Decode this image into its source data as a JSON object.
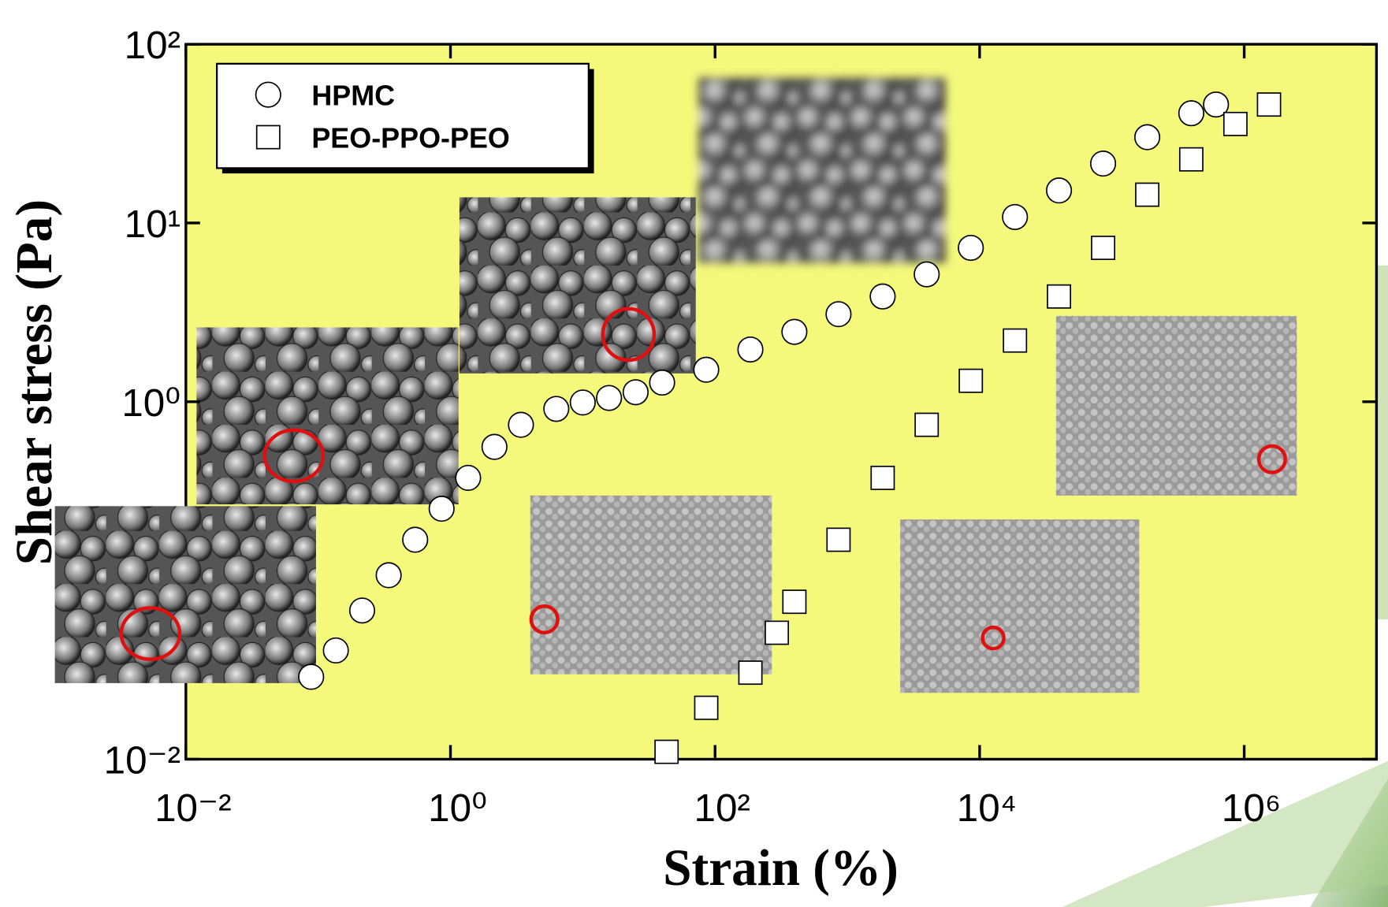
{
  "chart_data": {
    "type": "scatter",
    "xlabel": "Strain   (%)",
    "ylabel": "Shear stress   (Pa)",
    "xlim": [
      0.01,
      10000000
    ],
    "ylim": [
      0.01,
      100
    ],
    "xlog": true,
    "ylog": true,
    "xticks": [
      {
        "value": 0.01,
        "label": "10⁻²"
      },
      {
        "value": 1,
        "label": "10⁰"
      },
      {
        "value": 100,
        "label": "10²"
      },
      {
        "value": 10000,
        "label": "10⁴"
      },
      {
        "value": 1000000,
        "label": "10⁶"
      }
    ],
    "yticks": [
      {
        "value": 0.01,
        "label": "10⁻²"
      },
      {
        "value": 1,
        "label": "10⁰"
      },
      {
        "value": 10,
        "label": "10¹"
      },
      {
        "value": 100,
        "label": "10²"
      }
    ],
    "background": "#f4f97c",
    "series": [
      {
        "name": "HPMC",
        "marker": "circle",
        "color": "#ffffff",
        "x": [
          0.0885,
          0.136,
          0.215,
          0.341,
          0.541,
          0.857,
          1.36,
          2.15,
          3.41,
          6.31,
          10,
          15.8,
          25.1,
          39.8,
          85.8,
          185,
          398,
          858,
          1850,
          3980,
          8580,
          18500,
          39800,
          85800,
          185000,
          398000,
          612000
        ],
        "values": [
          0.0289,
          0.0406,
          0.0679,
          0.107,
          0.169,
          0.252,
          0.375,
          0.559,
          0.743,
          0.912,
          0.99,
          1.05,
          1.13,
          1.28,
          1.51,
          1.96,
          2.46,
          3.09,
          3.88,
          5.16,
          7.26,
          10.8,
          15.2,
          21.5,
          30.2,
          41.1,
          46.0
        ]
      },
      {
        "name": "PEO-PPO-PEO",
        "marker": "square",
        "color": "#ffffff",
        "x": [
          43.0,
          85.8,
          185,
          293,
          398,
          858,
          1850,
          3980,
          8580,
          18500,
          39800,
          85800,
          185000,
          398000,
          858000,
          1540000
        ],
        "values": [
          0.011,
          0.0194,
          0.0305,
          0.051,
          0.076,
          0.169,
          0.375,
          0.743,
          1.31,
          2.2,
          3.88,
          7.26,
          14.4,
          22.7,
          35.8,
          46.0
        ]
      }
    ]
  }
}
